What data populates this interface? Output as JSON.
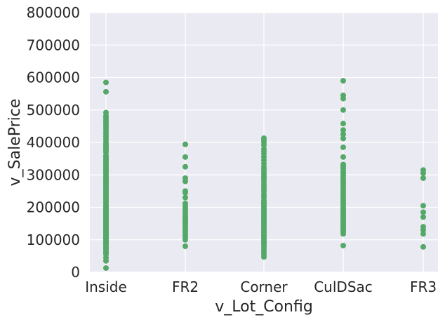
{
  "chart_data": {
    "type": "scatter",
    "xlabel": "v_Lot_Config",
    "ylabel": "v_SalePrice",
    "categories": [
      "Inside",
      "FR2",
      "Corner",
      "CulDSac",
      "FR3"
    ],
    "ylim": [
      0,
      800000
    ],
    "yticks": [
      0,
      100000,
      200000,
      300000,
      400000,
      500000,
      600000,
      700000,
      800000
    ],
    "ytick_labels": [
      "0",
      "100000",
      "200000",
      "300000",
      "400000",
      "500000",
      "600000",
      "700000",
      "800000"
    ],
    "grid": true,
    "legend": "none",
    "background_color": "#EAEAF2",
    "marker_color": "#55A868",
    "series": [
      {
        "values": [
          [
            0,
            12800
          ],
          [
            0,
            35000
          ],
          [
            0,
            45000
          ],
          [
            0,
            55000
          ],
          [
            0,
            60000
          ],
          [
            0,
            62000
          ],
          [
            0,
            68000
          ],
          [
            0,
            72000
          ],
          [
            0,
            75000
          ],
          [
            0,
            80000
          ],
          [
            0,
            85000
          ],
          [
            0,
            88000
          ],
          [
            0,
            92000
          ],
          [
            0,
            95000
          ],
          [
            0,
            98000
          ],
          [
            0,
            102000
          ],
          [
            0,
            105000
          ],
          [
            0,
            108000
          ],
          [
            0,
            112000
          ],
          [
            0,
            115000
          ],
          [
            0,
            118000
          ],
          [
            0,
            122000
          ],
          [
            0,
            125000
          ],
          [
            0,
            128000
          ],
          [
            0,
            132000
          ],
          [
            0,
            135000
          ],
          [
            0,
            138000
          ],
          [
            0,
            142000
          ],
          [
            0,
            145000
          ],
          [
            0,
            148000
          ],
          [
            0,
            152000
          ],
          [
            0,
            155000
          ],
          [
            0,
            158000
          ],
          [
            0,
            162000
          ],
          [
            0,
            165000
          ],
          [
            0,
            168000
          ],
          [
            0,
            172000
          ],
          [
            0,
            175000
          ],
          [
            0,
            178000
          ],
          [
            0,
            182000
          ],
          [
            0,
            185000
          ],
          [
            0,
            188000
          ],
          [
            0,
            192000
          ],
          [
            0,
            195000
          ],
          [
            0,
            198000
          ],
          [
            0,
            202000
          ],
          [
            0,
            205000
          ],
          [
            0,
            210000
          ],
          [
            0,
            215000
          ],
          [
            0,
            220000
          ],
          [
            0,
            225000
          ],
          [
            0,
            230000
          ],
          [
            0,
            235000
          ],
          [
            0,
            240000
          ],
          [
            0,
            245000
          ],
          [
            0,
            250000
          ],
          [
            0,
            255000
          ],
          [
            0,
            260000
          ],
          [
            0,
            265000
          ],
          [
            0,
            270000
          ],
          [
            0,
            275000
          ],
          [
            0,
            280000
          ],
          [
            0,
            285000
          ],
          [
            0,
            290000
          ],
          [
            0,
            295000
          ],
          [
            0,
            300000
          ],
          [
            0,
            305000
          ],
          [
            0,
            310000
          ],
          [
            0,
            315000
          ],
          [
            0,
            320000
          ],
          [
            0,
            325000
          ],
          [
            0,
            330000
          ],
          [
            0,
            335000
          ],
          [
            0,
            340000
          ],
          [
            0,
            345000
          ],
          [
            0,
            350000
          ],
          [
            0,
            355000
          ],
          [
            0,
            360000
          ],
          [
            0,
            370000
          ],
          [
            0,
            375000
          ],
          [
            0,
            380000
          ],
          [
            0,
            385000
          ],
          [
            0,
            390000
          ],
          [
            0,
            395000
          ],
          [
            0,
            402000
          ],
          [
            0,
            410000
          ],
          [
            0,
            418000
          ],
          [
            0,
            425000
          ],
          [
            0,
            432000
          ],
          [
            0,
            440000
          ],
          [
            0,
            448000
          ],
          [
            0,
            455000
          ],
          [
            0,
            462000
          ],
          [
            0,
            468000
          ],
          [
            0,
            475000
          ],
          [
            0,
            482000
          ],
          [
            0,
            492000
          ],
          [
            0,
            556000
          ],
          [
            0,
            585000
          ],
          [
            1,
            80000
          ],
          [
            1,
            100000
          ],
          [
            1,
            108000
          ],
          [
            1,
            115000
          ],
          [
            1,
            122000
          ],
          [
            1,
            128000
          ],
          [
            1,
            135000
          ],
          [
            1,
            140000
          ],
          [
            1,
            145000
          ],
          [
            1,
            150000
          ],
          [
            1,
            155000
          ],
          [
            1,
            160000
          ],
          [
            1,
            165000
          ],
          [
            1,
            170000
          ],
          [
            1,
            178000
          ],
          [
            1,
            185000
          ],
          [
            1,
            192000
          ],
          [
            1,
            198000
          ],
          [
            1,
            205000
          ],
          [
            1,
            212000
          ],
          [
            1,
            230000
          ],
          [
            1,
            245000
          ],
          [
            1,
            250000
          ],
          [
            1,
            280000
          ],
          [
            1,
            290000
          ],
          [
            1,
            325000
          ],
          [
            1,
            355000
          ],
          [
            1,
            394000
          ],
          [
            2,
            47000
          ],
          [
            2,
            55000
          ],
          [
            2,
            62000
          ],
          [
            2,
            70000
          ],
          [
            2,
            78000
          ],
          [
            2,
            85000
          ],
          [
            2,
            90000
          ],
          [
            2,
            95000
          ],
          [
            2,
            100000
          ],
          [
            2,
            105000
          ],
          [
            2,
            110000
          ],
          [
            2,
            115000
          ],
          [
            2,
            120000
          ],
          [
            2,
            125000
          ],
          [
            2,
            130000
          ],
          [
            2,
            135000
          ],
          [
            2,
            140000
          ],
          [
            2,
            145000
          ],
          [
            2,
            150000
          ],
          [
            2,
            155000
          ],
          [
            2,
            160000
          ],
          [
            2,
            165000
          ],
          [
            2,
            170000
          ],
          [
            2,
            175000
          ],
          [
            2,
            180000
          ],
          [
            2,
            185000
          ],
          [
            2,
            190000
          ],
          [
            2,
            195000
          ],
          [
            2,
            200000
          ],
          [
            2,
            205000
          ],
          [
            2,
            210000
          ],
          [
            2,
            215000
          ],
          [
            2,
            220000
          ],
          [
            2,
            228000
          ],
          [
            2,
            235000
          ],
          [
            2,
            242000
          ],
          [
            2,
            250000
          ],
          [
            2,
            258000
          ],
          [
            2,
            265000
          ],
          [
            2,
            272000
          ],
          [
            2,
            280000
          ],
          [
            2,
            288000
          ],
          [
            2,
            295000
          ],
          [
            2,
            302000
          ],
          [
            2,
            310000
          ],
          [
            2,
            318000
          ],
          [
            2,
            325000
          ],
          [
            2,
            335000
          ],
          [
            2,
            345000
          ],
          [
            2,
            355000
          ],
          [
            2,
            365000
          ],
          [
            2,
            372000
          ],
          [
            2,
            380000
          ],
          [
            2,
            392000
          ],
          [
            2,
            400000
          ],
          [
            2,
            407000
          ],
          [
            2,
            413000
          ],
          [
            3,
            82000
          ],
          [
            3,
            118000
          ],
          [
            3,
            125000
          ],
          [
            3,
            130000
          ],
          [
            3,
            135000
          ],
          [
            3,
            140000
          ],
          [
            3,
            145000
          ],
          [
            3,
            150000
          ],
          [
            3,
            155000
          ],
          [
            3,
            160000
          ],
          [
            3,
            165000
          ],
          [
            3,
            170000
          ],
          [
            3,
            175000
          ],
          [
            3,
            180000
          ],
          [
            3,
            185000
          ],
          [
            3,
            190000
          ],
          [
            3,
            195000
          ],
          [
            3,
            200000
          ],
          [
            3,
            208000
          ],
          [
            3,
            215000
          ],
          [
            3,
            222000
          ],
          [
            3,
            230000
          ],
          [
            3,
            238000
          ],
          [
            3,
            245000
          ],
          [
            3,
            252000
          ],
          [
            3,
            260000
          ],
          [
            3,
            268000
          ],
          [
            3,
            275000
          ],
          [
            3,
            282000
          ],
          [
            3,
            290000
          ],
          [
            3,
            298000
          ],
          [
            3,
            305000
          ],
          [
            3,
            312000
          ],
          [
            3,
            320000
          ],
          [
            3,
            326000
          ],
          [
            3,
            332000
          ],
          [
            3,
            355000
          ],
          [
            3,
            385000
          ],
          [
            3,
            412000
          ],
          [
            3,
            425000
          ],
          [
            3,
            438000
          ],
          [
            3,
            458000
          ],
          [
            3,
            500000
          ],
          [
            3,
            535000
          ],
          [
            3,
            545000
          ],
          [
            3,
            590000
          ],
          [
            4,
            78000
          ],
          [
            4,
            118000
          ],
          [
            4,
            130000
          ],
          [
            4,
            140000
          ],
          [
            4,
            170000
          ],
          [
            4,
            185000
          ],
          [
            4,
            205000
          ],
          [
            4,
            290000
          ],
          [
            4,
            305000
          ],
          [
            4,
            315000
          ]
        ]
      }
    ]
  }
}
